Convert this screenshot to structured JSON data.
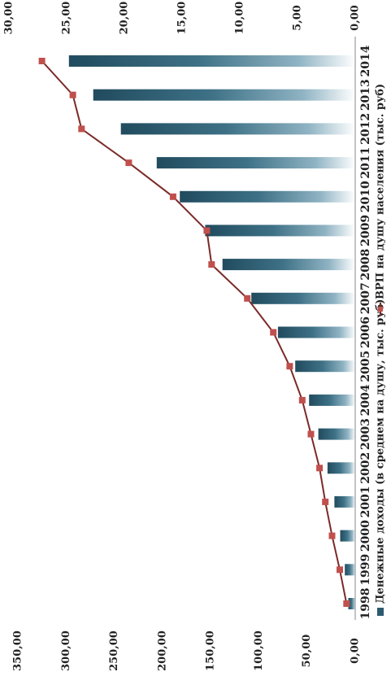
{
  "chart_data": {
    "type": "bar",
    "categories": [
      "1998",
      "1999",
      "2000",
      "2001",
      "2002",
      "2003",
      "2004",
      "2005",
      "2006",
      "2007",
      "2008",
      "2009",
      "2010",
      "2011",
      "2012",
      "2013",
      "2014"
    ],
    "series": [
      {
        "name": "Денежные доходы (в среднем на душу, тыс. руб)",
        "type": "bar",
        "axis": "primary",
        "values": [
          0.6,
          0.9,
          1.3,
          1.8,
          2.4,
          3.2,
          4.0,
          5.2,
          6.7,
          9.0,
          11.5,
          13.0,
          15.2,
          17.2,
          20.3,
          22.7,
          24.8
        ],
        "color": "#2c5a6e"
      },
      {
        "name": "ВРП на душу населения (тыс. руб)",
        "type": "line",
        "axis": "secondary",
        "values": [
          9,
          16,
          24,
          31,
          37,
          46,
          55,
          68,
          85,
          112,
          149,
          154,
          189,
          235,
          284,
          293,
          325
        ],
        "color": "#7b2a28",
        "marker_color": "#c0504d"
      }
    ],
    "primary_axis": {
      "range": [
        0,
        30
      ],
      "ticks": [
        "0,00",
        "5,00",
        "10,00",
        "15,00",
        "20,00",
        "25,00",
        "30,00"
      ]
    },
    "secondary_axis": {
      "range": [
        0,
        350
      ],
      "ticks": [
        "0,00",
        "50,00",
        "100,00",
        "150,00",
        "200,00",
        "250,00",
        "300,00",
        "350,00"
      ]
    },
    "orientation": "rotated-90-clockwise",
    "legend_position": "bottom",
    "grid": false
  }
}
